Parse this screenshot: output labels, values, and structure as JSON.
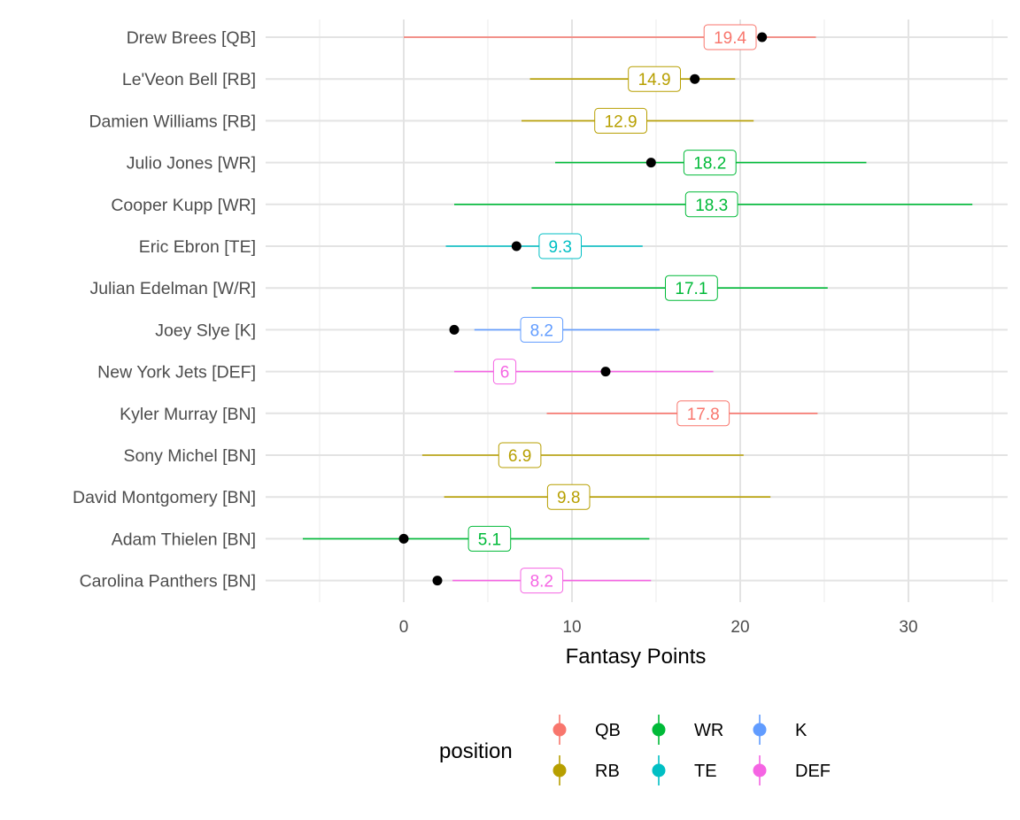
{
  "chart_data": {
    "type": "range-dot",
    "xlabel": "Fantasy Points",
    "xlim": [
      -8.5,
      36
    ],
    "x_ticks": [
      0,
      10,
      20,
      30
    ],
    "x_tick_labels": [
      "0",
      "10",
      "20",
      "30"
    ],
    "x_minor_ticks": [
      -5,
      5,
      15,
      25,
      35
    ],
    "grid": true,
    "legend": {
      "title": "position",
      "placement": "bottom",
      "entries": [
        {
          "label": "QB",
          "color": "#F8766D"
        },
        {
          "label": "WR",
          "color": "#00BA38"
        },
        {
          "label": "K",
          "color": "#619CFF"
        },
        {
          "label": "RB",
          "color": "#B79F00"
        },
        {
          "label": "TE",
          "color": "#00BFC4"
        },
        {
          "label": "DEF",
          "color": "#F564E3"
        }
      ]
    },
    "rows": [
      {
        "player": "Drew Brees [QB]",
        "position": "QB",
        "low": 0.0,
        "high": 24.5,
        "projection": 19.4,
        "projection_label": "19.4",
        "actual": 21.3
      },
      {
        "player": "Le'Veon Bell [RB]",
        "position": "RB",
        "low": 7.5,
        "high": 19.7,
        "projection": 14.9,
        "projection_label": "14.9",
        "actual": 17.3
      },
      {
        "player": "Damien Williams [RB]",
        "position": "RB",
        "low": 7.0,
        "high": 20.8,
        "projection": 12.9,
        "projection_label": "12.9",
        "actual": null
      },
      {
        "player": "Julio Jones [WR]",
        "position": "WR",
        "low": 9.0,
        "high": 27.5,
        "projection": 18.2,
        "projection_label": "18.2",
        "actual": 14.7
      },
      {
        "player": "Cooper Kupp [WR]",
        "position": "WR",
        "low": 3.0,
        "high": 33.8,
        "projection": 18.3,
        "projection_label": "18.3",
        "actual": null
      },
      {
        "player": "Eric Ebron [TE]",
        "position": "TE",
        "low": 2.5,
        "high": 14.2,
        "projection": 9.3,
        "projection_label": "9.3",
        "actual": 6.7
      },
      {
        "player": "Julian Edelman [W/R]",
        "position": "WR",
        "low": 7.6,
        "high": 25.2,
        "projection": 17.1,
        "projection_label": "17.1",
        "actual": null
      },
      {
        "player": "Joey Slye [K]",
        "position": "K",
        "low": 4.2,
        "high": 15.2,
        "projection": 8.2,
        "projection_label": "8.2",
        "actual": 3.0
      },
      {
        "player": "New York Jets [DEF]",
        "position": "DEF",
        "low": 3.0,
        "high": 18.4,
        "projection": 6.0,
        "projection_label": "6",
        "actual": 12.0
      },
      {
        "player": "Kyler Murray [BN]",
        "position": "QB",
        "low": 8.5,
        "high": 24.6,
        "projection": 17.8,
        "projection_label": "17.8",
        "actual": null
      },
      {
        "player": "Sony Michel [BN]",
        "position": "RB",
        "low": 1.1,
        "high": 20.2,
        "projection": 6.9,
        "projection_label": "6.9",
        "actual": null
      },
      {
        "player": "David Montgomery [BN]",
        "position": "RB",
        "low": 2.4,
        "high": 21.8,
        "projection": 9.8,
        "projection_label": "9.8",
        "actual": null
      },
      {
        "player": "Adam Thielen [BN]",
        "position": "WR",
        "low": -6.0,
        "high": 14.6,
        "projection": 5.1,
        "projection_label": "5.1",
        "actual": 0.0
      },
      {
        "player": "Carolina Panthers [BN]",
        "position": "DEF",
        "low": 2.9,
        "high": 14.7,
        "projection": 8.2,
        "projection_label": "8.2",
        "actual": 2.0
      }
    ]
  }
}
